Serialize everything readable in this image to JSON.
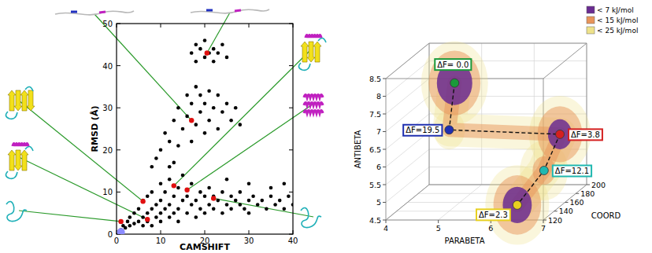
{
  "chart_data": [
    {
      "type": "scatter",
      "xlabel": "CAMSHIFT",
      "ylabel": "RMSD (Å)",
      "xlim": [
        0,
        40
      ],
      "xticks": [
        0,
        10,
        20,
        30,
        40
      ],
      "ylim": [
        0,
        50
      ],
      "yticks": [
        0,
        10,
        20,
        30,
        40,
        50
      ],
      "series": [
        {
          "color": "#000000",
          "marker": "circle",
          "x": [
            1,
            1.5,
            2,
            2.5,
            3,
            3,
            4,
            4,
            5,
            5,
            6,
            6,
            6,
            7,
            7,
            7,
            8,
            8,
            8,
            9,
            9,
            10,
            10,
            10,
            10,
            11,
            11,
            12,
            12,
            12,
            13,
            13,
            14,
            14,
            14,
            15,
            15,
            16,
            16,
            17,
            17,
            18,
            18,
            19,
            19,
            20,
            20,
            21,
            21,
            22,
            22,
            23,
            24,
            24,
            25,
            26,
            26,
            27,
            28,
            28,
            29,
            30,
            30,
            31,
            32,
            33,
            34,
            35,
            36,
            37,
            38,
            39,
            40,
            25,
            30,
            35,
            38,
            8,
            9,
            12,
            13,
            10,
            11,
            12,
            13,
            14,
            14,
            15,
            16,
            16,
            17,
            17,
            18,
            18,
            19,
            19,
            20,
            20,
            21,
            21,
            22,
            23,
            23,
            24,
            25,
            26,
            27,
            28,
            17,
            18,
            18,
            19,
            20,
            20,
            21,
            22,
            22,
            23,
            24,
            25
          ],
          "values": [
            1,
            2,
            1.5,
            3,
            2,
            4,
            2.5,
            5,
            3,
            6,
            2,
            4,
            8,
            3,
            5,
            9,
            2,
            6,
            10,
            4,
            7,
            3,
            5,
            8,
            12,
            6,
            10,
            4,
            7,
            13,
            5,
            9,
            3,
            6,
            11,
            8,
            14,
            5,
            9,
            7,
            12,
            4,
            8,
            6,
            10,
            5,
            9,
            7,
            11,
            6,
            9,
            8,
            5,
            10,
            7,
            6,
            9,
            8,
            7,
            10,
            6,
            8,
            5,
            9,
            7,
            8,
            6,
            9,
            7,
            8,
            6,
            9,
            7,
            13,
            12,
            11,
            12,
            16,
            18,
            16,
            17,
            20,
            24,
            22,
            27,
            21,
            30,
            25,
            28,
            33,
            22,
            31,
            26,
            35,
            29,
            33,
            24,
            31,
            27,
            34,
            30,
            25,
            33,
            29,
            31,
            27,
            30,
            26,
            43,
            41,
            45,
            44,
            42,
            46,
            43,
            44,
            41,
            43,
            45,
            42
          ]
        },
        {
          "color": "#e01010",
          "marker": "circle",
          "x": [
            1,
            7,
            6,
            13,
            16,
            22,
            17,
            20.5
          ],
          "values": [
            3,
            3.5,
            7.8,
            11.5,
            10.5,
            8.5,
            27,
            43
          ]
        },
        {
          "color": "#8c8cff",
          "marker": "circle",
          "x": [
            1
          ],
          "values": [
            0.5
          ]
        }
      ]
    },
    {
      "type": "scatter3d",
      "xlabel": "PARABETA",
      "ylabel": "ANTIBETA",
      "zlabel": "COORD",
      "xlim": [
        4,
        7
      ],
      "xticks": [
        4,
        5,
        6,
        7
      ],
      "ylim": [
        4.5,
        8.5
      ],
      "yticks": [
        4.5,
        5,
        5.5,
        6,
        6.5,
        7,
        7.5,
        8,
        8.5
      ],
      "zlim": [
        120,
        200
      ],
      "zticks": [
        120,
        140,
        160,
        180,
        200
      ],
      "levels": [
        {
          "name": "< 7 kJ/mol",
          "value": 7,
          "color": "#6a2c91"
        },
        {
          "name": "< 15 kJ/mol",
          "value": 15,
          "color": "#e8955a"
        },
        {
          "name": "< 25 kJ/mol",
          "value": 25,
          "color": "#eee28a"
        }
      ],
      "states": [
        {
          "x": 5,
          "y": 8,
          "z": 150,
          "value": 0.0,
          "label": "ΔF= 0.0",
          "color": "#1a9a3a"
        },
        {
          "x": 5,
          "y": 6.8,
          "z": 140,
          "value": 19.5,
          "label": "ΔF=19.5",
          "color": "#2030b0"
        },
        {
          "x": 6.8,
          "y": 6.3,
          "z": 170,
          "value": 3.8,
          "label": "ΔF=3.8",
          "color": "#d42020"
        },
        {
          "x": 6.6,
          "y": 5.4,
          "z": 160,
          "value": 12.1,
          "label": "ΔF=12.1",
          "color": "#20b8b0"
        },
        {
          "x": 6.4,
          "y": 4.8,
          "z": 130,
          "value": 2.3,
          "label": "ΔF=2.3",
          "color": "#e8d020"
        }
      ]
    }
  ]
}
